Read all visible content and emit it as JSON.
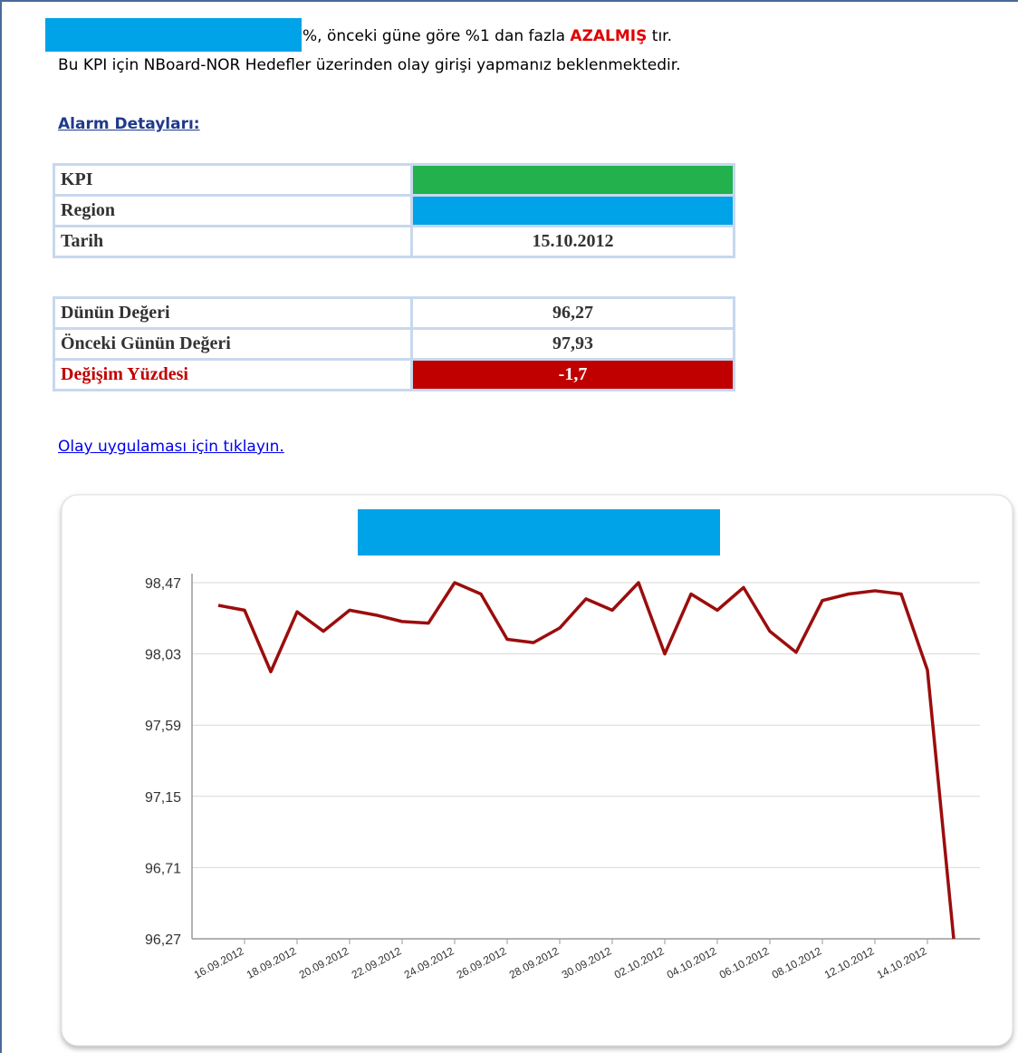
{
  "intro": {
    "text_before": "%, önceki güne göre %1 dan fazla ",
    "emphasis": "AZALMIŞ",
    "text_after": " tır."
  },
  "instruction": "Bu KPI için NBoard-NOR Hedefler üzerinden olay girişi yapmanız beklenmektedir.",
  "section_title": "Alarm Detayları:",
  "details_table": {
    "rows": [
      {
        "label": "KPI"
      },
      {
        "label": "Region"
      },
      {
        "label": "Tarih",
        "value": "15.10.2012"
      }
    ]
  },
  "values_table": {
    "rows": [
      {
        "label": "Dünün Değeri",
        "value": "96,27"
      },
      {
        "label": "Önceki Günün Değeri",
        "value": "97,93"
      },
      {
        "label": "Değişim Yüzdesi",
        "value": "-1,7"
      }
    ]
  },
  "link": "Olay uygulaması için tıklayın.",
  "chart_data": {
    "type": "line",
    "categories": [
      null,
      "16.09.2012",
      null,
      "18.09.2012",
      null,
      "20.09.2012",
      null,
      "22.09.2012",
      null,
      "24.09.2012",
      null,
      "26.09.2012",
      null,
      "28.09.2012",
      null,
      "30.09.2012",
      null,
      "02.10.2012",
      null,
      "04.10.2012",
      null,
      "06.10.2012",
      null,
      "08.10.2012",
      null,
      "12.10.2012",
      null,
      "14.10.2012",
      null
    ],
    "series": [
      {
        "color": "#9b0d0d",
        "values": [
          98.33,
          98.3,
          97.92,
          98.29,
          98.17,
          98.3,
          98.27,
          98.23,
          98.22,
          98.47,
          98.4,
          98.12,
          98.1,
          98.19,
          98.37,
          98.3,
          98.47,
          98.03,
          98.4,
          98.3,
          98.44,
          98.17,
          98.04,
          98.36,
          98.4,
          98.42,
          98.4,
          97.93,
          96.27
        ]
      }
    ],
    "ylim": [
      96.27,
      98.47
    ],
    "yticks": [
      {
        "value": 96.27,
        "label": "96,27"
      },
      {
        "value": 96.71,
        "label": "96,71"
      },
      {
        "value": 97.15,
        "label": "97,15"
      },
      {
        "value": 97.59,
        "label": "97,59"
      },
      {
        "value": 98.03,
        "label": "98,03"
      },
      {
        "value": 98.47,
        "label": "98,47"
      }
    ],
    "grid": true
  }
}
